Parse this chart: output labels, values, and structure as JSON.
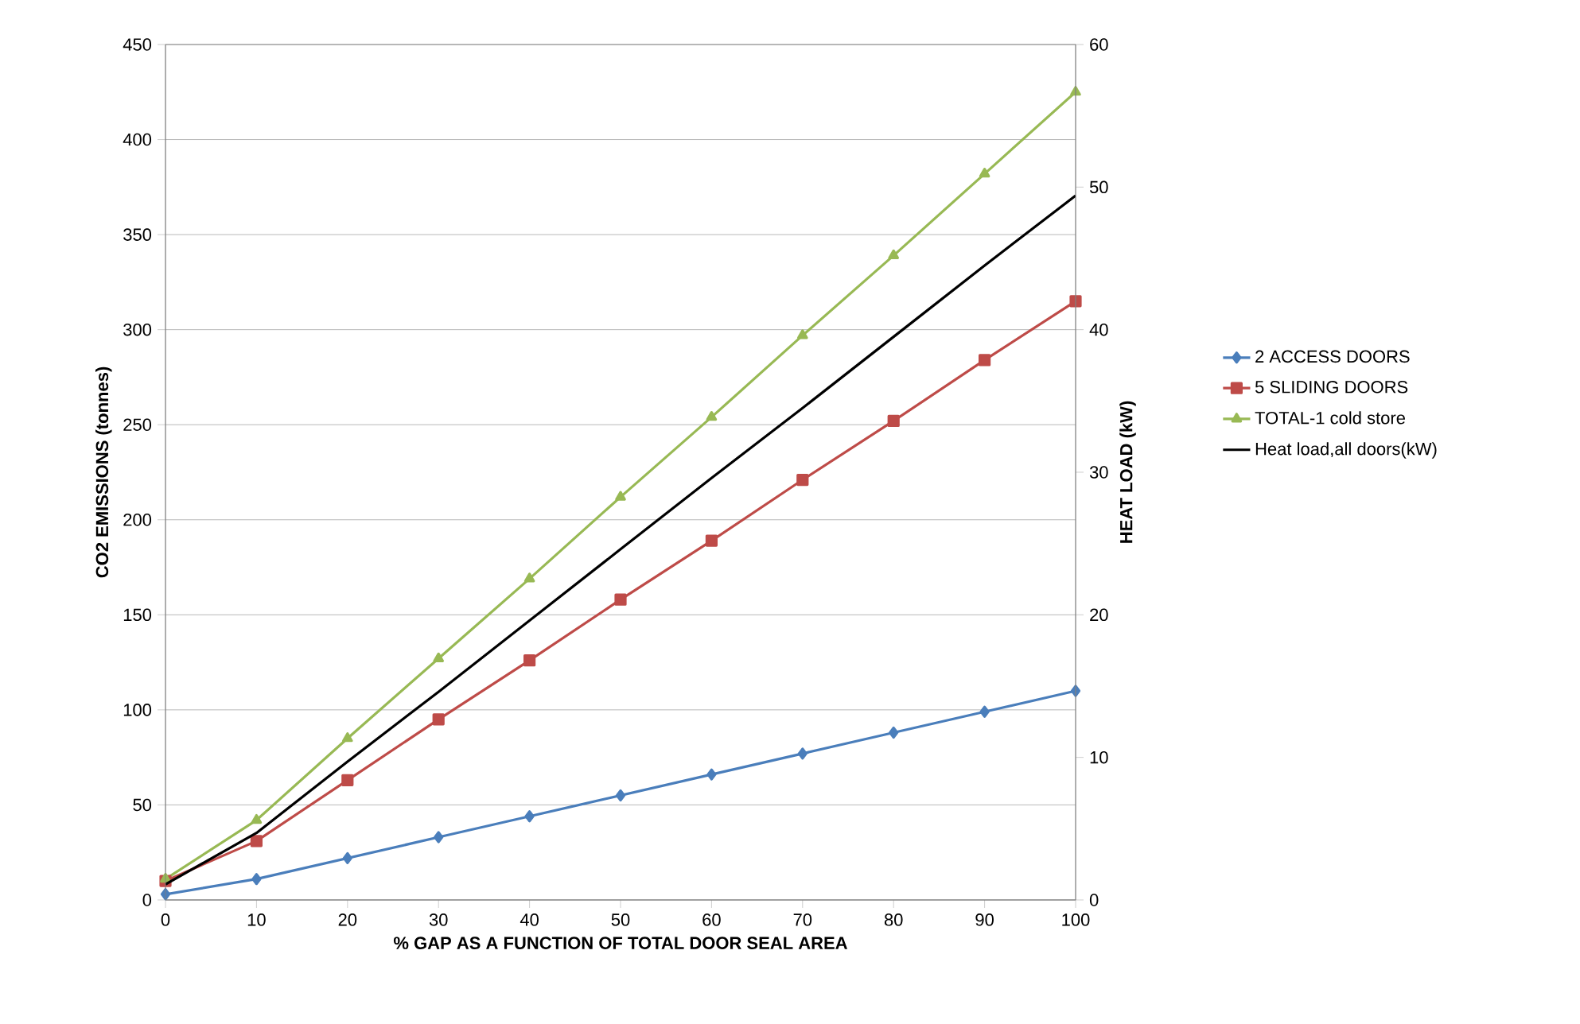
{
  "chart_data": {
    "type": "line",
    "xlabel": "% GAP AS A FUNCTION OF TOTAL  DOOR SEAL AREA",
    "ylabel": "CO2 EMISSIONS (tonnes)",
    "y2label": "HEAT LOAD (kW)",
    "x": [
      0,
      10,
      20,
      30,
      40,
      50,
      60,
      70,
      80,
      90,
      100
    ],
    "series": [
      {
        "name": "2 ACCESS DOORS",
        "color": "#4a7ebb",
        "marker": "diamond",
        "values": [
          3,
          11,
          22,
          33,
          44,
          55,
          66,
          77,
          88,
          99,
          110
        ]
      },
      {
        "name": "5 SLIDING DOORS",
        "color": "#be4b48",
        "marker": "square",
        "values": [
          10,
          31,
          63,
          95,
          126,
          158,
          189,
          221,
          252,
          284,
          315
        ]
      },
      {
        "name": "TOTAL-1 cold store",
        "color": "#98b954",
        "marker": "triangle",
        "values": [
          11,
          42,
          85,
          127,
          169,
          212,
          254,
          297,
          339,
          382,
          425
        ]
      },
      {
        "name": "Heat load,all doors(kW)",
        "color": "#000000",
        "marker": "none",
        "axis": "y2",
        "values": [
          1.1,
          4.7,
          9.7,
          14.6,
          19.6,
          24.6,
          29.6,
          34.5,
          39.5,
          44.5,
          49.4
        ]
      }
    ],
    "xlim": [
      0,
      100
    ],
    "xticks": [
      0,
      10,
      20,
      30,
      40,
      50,
      60,
      70,
      80,
      90,
      100
    ],
    "ylim": [
      0,
      450
    ],
    "yticks": [
      0,
      50,
      100,
      150,
      200,
      250,
      300,
      350,
      400,
      450
    ],
    "y2lim": [
      0,
      60
    ],
    "y2ticks": [
      0,
      10,
      20,
      30,
      40,
      50,
      60
    ],
    "grid": "y",
    "legend": "right",
    "line_style": "solid"
  }
}
